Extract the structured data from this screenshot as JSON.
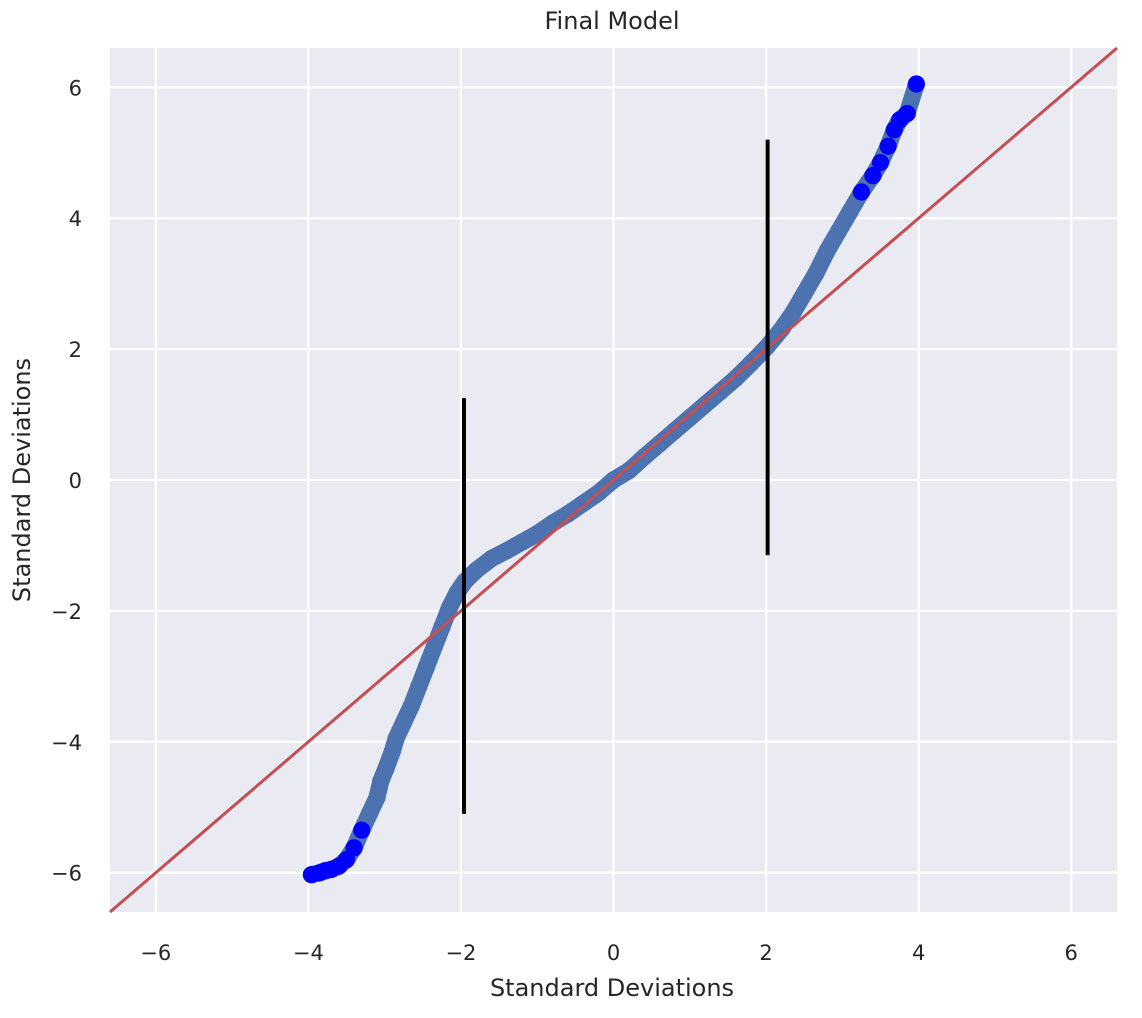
{
  "chart_data": {
    "type": "scatter",
    "title": "Final Model",
    "xlabel": "Standard Deviations",
    "ylabel": "Standard Deviations",
    "xlim": [
      -6.6,
      6.6
    ],
    "ylim": [
      -6.6,
      6.6
    ],
    "xticks": [
      -6,
      -4,
      -2,
      0,
      2,
      4,
      6
    ],
    "yticks": [
      -6,
      -4,
      -2,
      0,
      2,
      4,
      6
    ],
    "xtick_labels": [
      "−6",
      "−4",
      "−2",
      "0",
      "2",
      "4",
      "6"
    ],
    "ytick_labels": [
      "−6",
      "−4",
      "−2",
      "0",
      "2",
      "4",
      "6"
    ],
    "grid": true,
    "background_color": "#eaeaf2",
    "grid_color": "#ffffff",
    "series": [
      {
        "kind": "points",
        "color": "#4c72b0",
        "edge_color": "#0000ff",
        "points": [
          [
            -3.96,
            -6.03
          ],
          [
            -3.85,
            -6.0
          ],
          [
            -3.78,
            -5.97
          ],
          [
            -3.7,
            -5.95
          ],
          [
            -3.6,
            -5.9
          ],
          [
            -3.5,
            -5.8
          ],
          [
            -3.4,
            -5.62
          ],
          [
            -3.3,
            -5.35
          ],
          [
            -3.2,
            -5.1
          ],
          [
            -3.1,
            -4.85
          ],
          [
            -3.05,
            -4.6
          ],
          [
            -2.98,
            -4.4
          ],
          [
            -2.9,
            -4.15
          ],
          [
            -2.85,
            -3.95
          ],
          [
            -2.75,
            -3.7
          ],
          [
            -2.65,
            -3.45
          ],
          [
            -2.55,
            -3.15
          ],
          [
            -2.45,
            -2.85
          ],
          [
            -2.35,
            -2.55
          ],
          [
            -2.25,
            -2.25
          ],
          [
            -2.15,
            -1.95
          ],
          [
            -2.05,
            -1.72
          ],
          [
            -1.95,
            -1.55
          ],
          [
            -1.8,
            -1.38
          ],
          [
            -1.6,
            -1.2
          ],
          [
            -1.4,
            -1.08
          ],
          [
            -1.2,
            -0.95
          ],
          [
            -1.0,
            -0.82
          ],
          [
            -0.8,
            -0.66
          ],
          [
            -0.6,
            -0.52
          ],
          [
            -0.4,
            -0.36
          ],
          [
            -0.2,
            -0.2
          ],
          [
            0.0,
            0.0
          ],
          [
            0.2,
            0.14
          ],
          [
            0.4,
            0.35
          ],
          [
            0.6,
            0.55
          ],
          [
            0.8,
            0.75
          ],
          [
            1.0,
            0.95
          ],
          [
            1.2,
            1.15
          ],
          [
            1.4,
            1.35
          ],
          [
            1.6,
            1.55
          ],
          [
            1.8,
            1.78
          ],
          [
            2.0,
            2.02
          ],
          [
            2.2,
            2.3
          ],
          [
            2.35,
            2.55
          ],
          [
            2.5,
            2.85
          ],
          [
            2.65,
            3.15
          ],
          [
            2.8,
            3.5
          ],
          [
            2.95,
            3.8
          ],
          [
            3.1,
            4.1
          ],
          [
            3.25,
            4.4
          ],
          [
            3.4,
            4.65
          ],
          [
            3.5,
            4.85
          ],
          [
            3.6,
            5.1
          ],
          [
            3.68,
            5.35
          ],
          [
            3.75,
            5.5
          ],
          [
            3.85,
            5.6
          ],
          [
            3.97,
            6.05
          ]
        ]
      },
      {
        "kind": "reference-line",
        "color": "#c44e52",
        "from": [
          -6.6,
          -6.6
        ],
        "to": [
          6.6,
          6.6
        ]
      },
      {
        "kind": "vertical-lines",
        "color": "#000000",
        "lines": [
          {
            "x": -1.96,
            "y0": -5.1,
            "y1": 1.25
          },
          {
            "x": 2.02,
            "y0": -1.15,
            "y1": 5.2
          }
        ]
      }
    ]
  }
}
